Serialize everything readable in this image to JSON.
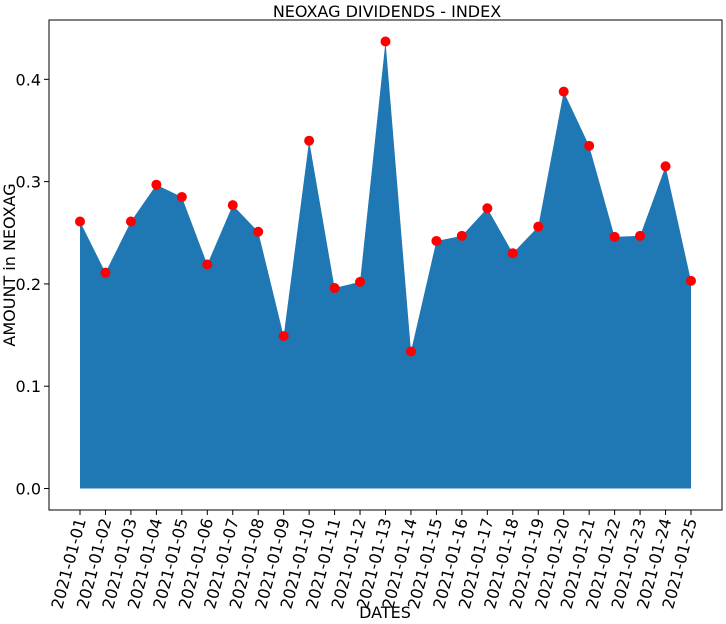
{
  "chart_data": {
    "type": "area",
    "title": "NEOXAG DIVIDENDS - INDEX",
    "xlabel": "DATES",
    "ylabel": "AMOUNT in NEOXAG",
    "x": [
      "2021-01-01",
      "2021-01-02",
      "2021-01-03",
      "2021-01-04",
      "2021-01-05",
      "2021-01-06",
      "2021-01-07",
      "2021-01-08",
      "2021-01-09",
      "2021-01-10",
      "2021-01-11",
      "2021-01-12",
      "2021-01-13",
      "2021-01-14",
      "2021-01-15",
      "2021-01-16",
      "2021-01-17",
      "2021-01-18",
      "2021-01-19",
      "2021-01-20",
      "2021-01-21",
      "2021-01-22",
      "2021-01-23",
      "2021-01-24",
      "2021-01-25"
    ],
    "values": [
      0.261,
      0.211,
      0.261,
      0.297,
      0.285,
      0.219,
      0.277,
      0.251,
      0.149,
      0.34,
      0.196,
      0.202,
      0.437,
      0.134,
      0.242,
      0.247,
      0.274,
      0.23,
      0.256,
      0.388,
      0.335,
      0.246,
      0.247,
      0.315,
      0.203
    ],
    "yticks": [
      "0.0",
      "0.1",
      "0.2",
      "0.3",
      "0.4"
    ],
    "ylim": [
      -0.021,
      0.458
    ],
    "fill_color": "#1f77b4",
    "marker_color": "#ff0000",
    "grid": false
  }
}
